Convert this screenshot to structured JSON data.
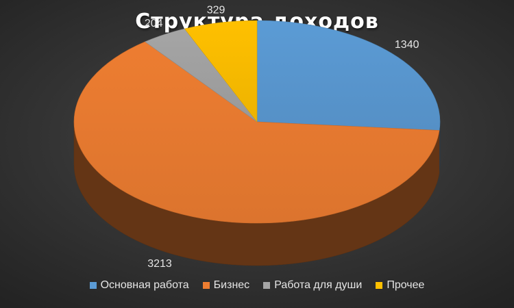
{
  "chart_data": {
    "type": "pie",
    "title": "Структура доходов",
    "style": "3d",
    "legend_position": "bottom",
    "series": [
      {
        "name": "Основная работа",
        "value": 1340,
        "color": "#5b9bd5"
      },
      {
        "name": "Бизнес",
        "value": 3213,
        "color": "#ed7d31"
      },
      {
        "name": "Работа для души",
        "value": 204,
        "color": "#a5a5a5"
      },
      {
        "name": "Прочее",
        "value": 329,
        "color": "#ffc000"
      }
    ]
  }
}
